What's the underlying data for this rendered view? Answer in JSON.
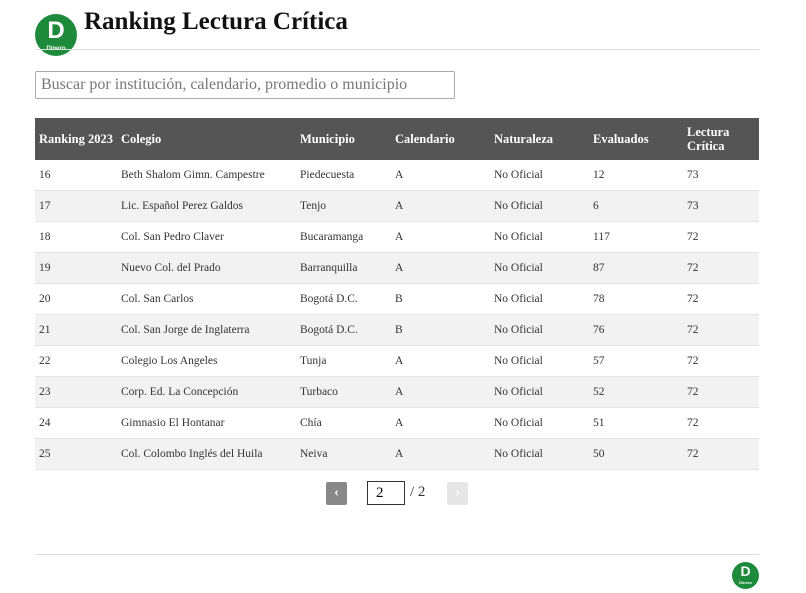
{
  "header": {
    "logo": {
      "letter": "D",
      "brand": "Dinero"
    },
    "title": "Ranking Lectura Crítica"
  },
  "search": {
    "placeholder": "Buscar por institución, calendario, promedio o municipio"
  },
  "table": {
    "columns": [
      "Ranking 2023",
      "Colegio",
      "Municipio",
      "Calendario",
      "Naturaleza",
      "Evaluados",
      "Lectura Crítica"
    ],
    "rows": [
      [
        "16",
        "Beth Shalom Gimn. Campestre",
        "Piedecuesta",
        "A",
        "No Oficial",
        "12",
        "73"
      ],
      [
        "17",
        "Lic. Español Perez Galdos",
        "Tenjo",
        "A",
        "No Oficial",
        "6",
        "73"
      ],
      [
        "18",
        "Col. San Pedro Claver",
        "Bucaramanga",
        "A",
        "No Oficial",
        "117",
        "72"
      ],
      [
        "19",
        "Nuevo Col. del Prado",
        "Barranquilla",
        "A",
        "No Oficial",
        "87",
        "72"
      ],
      [
        "20",
        "Col. San Carlos",
        "Bogotá D.C.",
        "B",
        "No Oficial",
        "78",
        "72"
      ],
      [
        "21",
        "Col. San Jorge de Inglaterra",
        "Bogotá D.C.",
        "B",
        "No Oficial",
        "76",
        "72"
      ],
      [
        "22",
        "Colegio Los Angeles",
        "Tunja",
        "A",
        "No Oficial",
        "57",
        "72"
      ],
      [
        "23",
        "Corp. Ed. La Concepción",
        "Turbaco",
        "A",
        "No Oficial",
        "52",
        "72"
      ],
      [
        "24",
        "Gimnasio El Hontanar",
        "Chía",
        "A",
        "No Oficial",
        "51",
        "72"
      ],
      [
        "25",
        "Col. Colombo Inglés del Huila",
        "Neiva",
        "A",
        "No Oficial",
        "50",
        "72"
      ]
    ]
  },
  "pagination": {
    "prev": "‹",
    "current": "2",
    "total": "/ 2",
    "next": "›"
  },
  "footer": {
    "logo": {
      "letter": "D",
      "brand": "Dinero"
    }
  }
}
